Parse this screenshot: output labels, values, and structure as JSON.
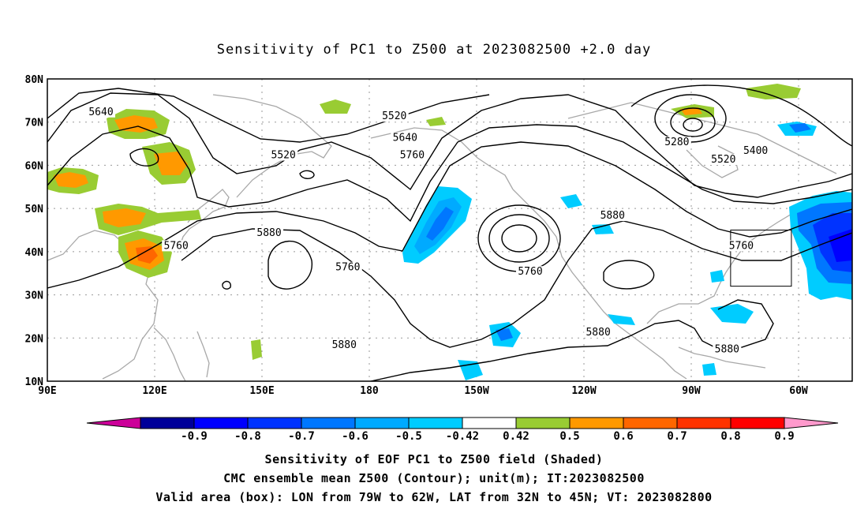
{
  "title": "Sensitivity of PC1 to Z500 at 2023082500 +2.0 day",
  "lat_ticks": [
    "80N",
    "70N",
    "60N",
    "50N",
    "40N",
    "30N",
    "20N",
    "10N"
  ],
  "lon_ticks": [
    "90E",
    "120E",
    "150E",
    "180",
    "150W",
    "120W",
    "90W",
    "60W"
  ],
  "contour_labels": [
    {
      "text": "5640",
      "lon": 105,
      "lat": 72
    },
    {
      "text": "5520",
      "lon": 156,
      "lat": 62
    },
    {
      "text": "5520",
      "lon": 187,
      "lat": 71
    },
    {
      "text": "5640",
      "lon": 190,
      "lat": 66
    },
    {
      "text": "5760",
      "lon": 192,
      "lat": 62
    },
    {
      "text": "5280",
      "lon": 266,
      "lat": 65
    },
    {
      "text": "5400",
      "lon": 288,
      "lat": 63
    },
    {
      "text": "5520",
      "lon": 279,
      "lat": 61
    },
    {
      "text": "5880",
      "lon": 152,
      "lat": 44
    },
    {
      "text": "5760",
      "lon": 126,
      "lat": 41
    },
    {
      "text": "5760",
      "lon": 174,
      "lat": 36
    },
    {
      "text": "5760",
      "lon": 225,
      "lat": 35
    },
    {
      "text": "5880",
      "lon": 248,
      "lat": 48
    },
    {
      "text": "5760",
      "lon": 284,
      "lat": 41
    },
    {
      "text": "5880",
      "lon": 173,
      "lat": 18
    },
    {
      "text": "5880",
      "lon": 244,
      "lat": 21
    },
    {
      "text": "5880",
      "lon": 280,
      "lat": 17
    }
  ],
  "valid_box": {
    "lon_min": 281,
    "lon_max": 298,
    "lat_min": 32,
    "lat_max": 45
  },
  "colorbar": {
    "labels": [
      "-0.9",
      "-0.8",
      "-0.7",
      "-0.6",
      "-0.5",
      "-0.42",
      "0.42",
      "0.5",
      "0.6",
      "0.7",
      "0.8",
      "0.9"
    ],
    "colors": [
      "#000099",
      "#0000ff",
      "#0033ff",
      "#0077ff",
      "#00aaff",
      "#00ccff",
      "#ffffff",
      "#99cc33",
      "#ff9900",
      "#ff6600",
      "#ff3300",
      "#ff0000"
    ],
    "low_end_color": "#cc0099",
    "high_end_color": "#ff99cc"
  },
  "captions": [
    "Sensitivity of EOF PC1 to Z500 field (Shaded)",
    "CMC ensemble mean Z500 (Contour); unit(m); IT:2023082500",
    "Valid area (box): LON from 79W to 62W, LAT from 32N to 45N; VT: 2023082800"
  ]
}
